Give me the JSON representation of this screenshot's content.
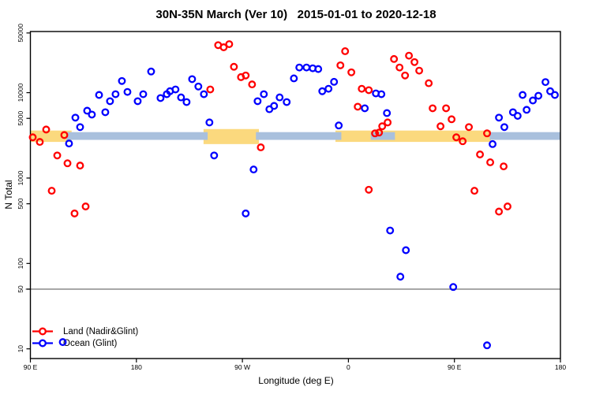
{
  "title": "30N-35N March (Ver 10)   2015-01-01 to 2020-12-18",
  "chart_data": {
    "type": "scatter",
    "title": "30N-35N March (Ver 10)   2015-01-01 to 2020-12-18",
    "x_axis": {
      "label": "Longitude (deg E)",
      "note": "wrapped longitude axis reading 90E, 180, 90W, 0, 90E, 180; stored as unwrapped degrees 90-540",
      "range_deg": [
        90,
        540
      ],
      "ticks": [
        {
          "deg": 90,
          "label": "90 E"
        },
        {
          "deg": 180,
          "label": "180"
        },
        {
          "deg": 270,
          "label": "90 W"
        },
        {
          "deg": 360,
          "label": "0"
        },
        {
          "deg": 450,
          "label": "90 E"
        },
        {
          "deg": 540,
          "label": "180"
        }
      ]
    },
    "y_axis": {
      "label": "N Total",
      "scale": "log",
      "range": [
        7.7,
        52000
      ],
      "ticks": [
        {
          "v": 10,
          "label": "10"
        },
        {
          "v": 50,
          "label": "50"
        },
        {
          "v": 100,
          "label": "100"
        },
        {
          "v": 500,
          "label": "500"
        },
        {
          "v": 1000,
          "label": "1000"
        },
        {
          "v": 5000,
          "label": "5000"
        },
        {
          "v": 10000,
          "label": "10000"
        },
        {
          "v": 50000,
          "label": "50000"
        }
      ]
    },
    "grid": "off",
    "legend_position": "bottom-left-inside",
    "reference_line": {
      "y": 50,
      "color": "#7f7f7f"
    },
    "bands": {
      "yellow_color": "#FBD97E",
      "blue_color": "#A9C0DD",
      "yellow": [
        {
          "deg": [
            90,
            125
          ],
          "n": [
            2650,
            3600
          ]
        },
        {
          "deg": [
            237,
            284
          ],
          "n": [
            2500,
            3750
          ]
        },
        {
          "deg": [
            349,
            481
          ],
          "n": [
            2650,
            3600
          ]
        }
      ],
      "blue": [
        {
          "deg": [
            120.5,
            240.5
          ],
          "n": [
            2800,
            3450
          ]
        },
        {
          "deg": [
            281.5,
            354
          ],
          "n": [
            2800,
            3450
          ]
        },
        {
          "deg": [
            379,
            399.5
          ],
          "n": [
            2800,
            3450
          ]
        },
        {
          "deg": [
            480,
            540
          ],
          "n": [
            2800,
            3450
          ]
        }
      ]
    },
    "series": [
      {
        "name": "Land (Nadir&Glint)",
        "color": "#FF0000",
        "marker": "open-circle",
        "points": [
          [
            103.4,
            3700
          ],
          [
            92,
            3000
          ],
          [
            98,
            2650
          ],
          [
            118.8,
            3190
          ],
          [
            112.8,
            1840
          ],
          [
            121.5,
            1490
          ],
          [
            132.2,
            1400
          ],
          [
            108.1,
            710
          ],
          [
            136.9,
            465
          ],
          [
            127.5,
            385
          ],
          [
            249.4,
            36000
          ],
          [
            254.1,
            34000
          ],
          [
            258.8,
            37000
          ],
          [
            262.8,
            20100
          ],
          [
            268.8,
            15200
          ],
          [
            272.8,
            15900
          ],
          [
            278.2,
            12500
          ],
          [
            242.7,
            10900
          ],
          [
            285.6,
            2290
          ],
          [
            357.2,
            30600
          ],
          [
            353.2,
            20900
          ],
          [
            362.5,
            17300
          ],
          [
            371.3,
            11100
          ],
          [
            377.3,
            10700
          ],
          [
            367.9,
            6850
          ],
          [
            382.6,
            3340
          ],
          [
            386,
            3410
          ],
          [
            388.7,
            4040
          ],
          [
            393.3,
            4480
          ],
          [
            398.7,
            24800
          ],
          [
            403.4,
            19700
          ],
          [
            408.1,
            15900
          ],
          [
            411.4,
            27100
          ],
          [
            416.1,
            22800
          ],
          [
            420.1,
            18100
          ],
          [
            428.2,
            12900
          ],
          [
            377.3,
            730
          ],
          [
            431.5,
            6560
          ],
          [
            442.9,
            6560
          ],
          [
            447.6,
            4880
          ],
          [
            438.2,
            4040
          ],
          [
            462.3,
            3950
          ],
          [
            451.6,
            3000
          ],
          [
            457,
            2700
          ],
          [
            477.7,
            3340
          ],
          [
            471.7,
            1890
          ],
          [
            480.4,
            1530
          ],
          [
            491.8,
            1370
          ],
          [
            467,
            710
          ],
          [
            487.8,
            405
          ],
          [
            495.1,
            465
          ]
        ]
      },
      {
        "name": "Ocean (Glint)",
        "color": "#0000FF",
        "marker": "open-circle",
        "points": [
          [
            192.5,
            17700
          ],
          [
            167.7,
            13700
          ],
          [
            148.3,
            9400
          ],
          [
            172.4,
            10200
          ],
          [
            162.3,
            9600
          ],
          [
            181.1,
            7950
          ],
          [
            185.8,
            9600
          ],
          [
            200.5,
            8650
          ],
          [
            157.6,
            7950
          ],
          [
            153.6,
            5900
          ],
          [
            138.2,
            6150
          ],
          [
            142.2,
            5540
          ],
          [
            128.2,
            5100
          ],
          [
            132.2,
            3950
          ],
          [
            122.8,
            2540
          ],
          [
            227.3,
            14400
          ],
          [
            232.6,
            11800
          ],
          [
            237.3,
            9600
          ],
          [
            213.2,
            10900
          ],
          [
            208.5,
            10400
          ],
          [
            205.8,
            9600
          ],
          [
            217.9,
            8800
          ],
          [
            222.6,
            7760
          ],
          [
            242,
            4480
          ],
          [
            246,
            1840
          ],
          [
            279.5,
            1260
          ],
          [
            272.8,
            385
          ],
          [
            282.9,
            7950
          ],
          [
            288.2,
            9600
          ],
          [
            292.9,
            6400
          ],
          [
            296.9,
            7000
          ],
          [
            301.6,
            8800
          ],
          [
            307.6,
            7760
          ],
          [
            313.7,
            14700
          ],
          [
            318.3,
            19700
          ],
          [
            324.4,
            19700
          ],
          [
            329.7,
            19300
          ],
          [
            334.4,
            18900
          ],
          [
            337.8,
            10400
          ],
          [
            343.1,
            11100
          ],
          [
            347.8,
            13400
          ],
          [
            351.8,
            4130
          ],
          [
            373.9,
            6560
          ],
          [
            383.3,
            9800
          ],
          [
            388,
            9600
          ],
          [
            392.7,
            5770
          ],
          [
            395.4,
            243
          ],
          [
            408.8,
            143
          ],
          [
            404.1,
            70
          ],
          [
            449,
            53
          ],
          [
            477.7,
            11
          ],
          [
            117.5,
            12
          ],
          [
            527.3,
            13300
          ],
          [
            531.3,
            10400
          ],
          [
            535.3,
            9400
          ],
          [
            521.3,
            9200
          ],
          [
            507.9,
            9400
          ],
          [
            516.6,
            8100
          ],
          [
            511.3,
            6300
          ],
          [
            499.7,
            5900
          ],
          [
            503.7,
            5350
          ],
          [
            487.8,
            5100
          ],
          [
            492.4,
            3950
          ],
          [
            482.4,
            2500
          ]
        ]
      }
    ]
  }
}
